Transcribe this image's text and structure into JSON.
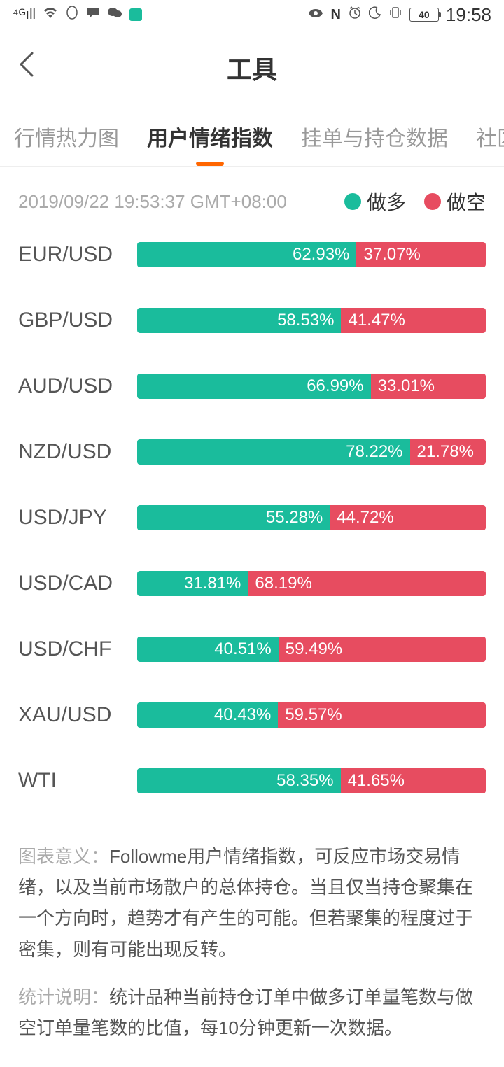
{
  "colors": {
    "long": "#1abc9c",
    "short": "#e74c60",
    "tab_indicator": "#ff6600",
    "text_muted": "#aaaaaa",
    "text": "#333333"
  },
  "status_bar": {
    "time": "19:58",
    "battery": "40"
  },
  "header": {
    "title": "工具"
  },
  "tabs": [
    {
      "label": "行情热力图",
      "active": false
    },
    {
      "label": "用户情绪指数",
      "active": true
    },
    {
      "label": "挂单与持仓数据",
      "active": false
    },
    {
      "label": "社区",
      "active": false
    }
  ],
  "meta": {
    "timestamp": "2019/09/22 19:53:37 GMT+08:00",
    "legend_long": "做多",
    "legend_short": "做空"
  },
  "rows": [
    {
      "pair": "EUR/USD",
      "long": 62.93,
      "short": 37.07
    },
    {
      "pair": "GBP/USD",
      "long": 58.53,
      "short": 41.47
    },
    {
      "pair": "AUD/USD",
      "long": 66.99,
      "short": 33.01
    },
    {
      "pair": "NZD/USD",
      "long": 78.22,
      "short": 21.78
    },
    {
      "pair": "USD/JPY",
      "long": 55.28,
      "short": 44.72
    },
    {
      "pair": "USD/CAD",
      "long": 31.81,
      "short": 68.19
    },
    {
      "pair": "USD/CHF",
      "long": 40.51,
      "short": 59.49
    },
    {
      "pair": "XAU/USD",
      "long": 40.43,
      "short": 59.57
    },
    {
      "pair": "WTI",
      "long": 58.35,
      "short": 41.65
    }
  ],
  "explain": {
    "label1": "图表意义：",
    "text1": "Followme用户情绪指数，可反应市场交易情绪，以及当前市场散户的总体持仓。当且仅当持仓聚集在一个方向时，趋势才有产生的可能。但若聚集的程度过于密集，则有可能出现反转。",
    "label2": "统计说明：",
    "text2": "统计品种当前持仓订单中做多订单量笔数与做空订单量笔数的比值，每10分钟更新一次数据。"
  }
}
